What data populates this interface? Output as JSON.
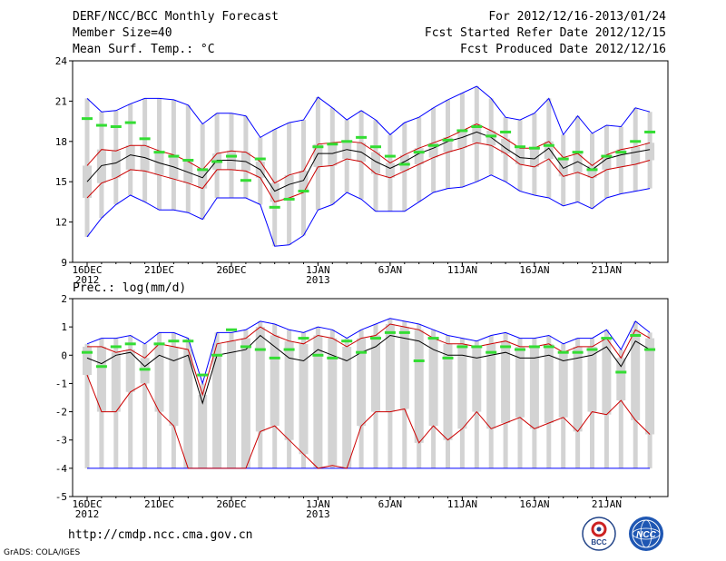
{
  "header": {
    "title": "DERF/NCC/BCC Monthly Forecast",
    "member_size": "Member Size=40",
    "variable": "Mean Surf. Temp.: °C",
    "period": "For 2012/12/16-2013/01/24",
    "refer_date": "Fcst Started Refer Date 2012/12/15",
    "produced_date": "Fcst Produced Date 2012/12/16"
  },
  "footer": {
    "url": "http://cmdp.ncc.cma.gov.cn",
    "credit": "GrADS: COLA/IGES",
    "logo_left_text": "BCC",
    "logo_right_text": "NCC"
  },
  "colors": {
    "max_min_line": "#0000ff",
    "percentile_line": "#cc0000",
    "mean_line": "#000000",
    "observed_mark": "#33dd33",
    "box": "#d3d3d3"
  },
  "chart_data": [
    {
      "type": "line",
      "title": "Mean Surf. Temp.: °C",
      "ylabel": "",
      "ylim": [
        9,
        24
      ],
      "yticks": [
        9,
        12,
        15,
        18,
        21,
        24
      ],
      "xticks": [
        {
          "day": 0,
          "label": "16DEC",
          "sublabel": "2012"
        },
        {
          "day": 5,
          "label": "21DEC",
          "sublabel": ""
        },
        {
          "day": 10,
          "label": "26DEC",
          "sublabel": ""
        },
        {
          "day": 16,
          "label": "1JAN",
          "sublabel": "2013"
        },
        {
          "day": 21,
          "label": "6JAN",
          "sublabel": ""
        },
        {
          "day": 26,
          "label": "11JAN",
          "sublabel": ""
        },
        {
          "day": 31,
          "label": "16JAN",
          "sublabel": ""
        },
        {
          "day": 36,
          "label": "21JAN",
          "sublabel": ""
        }
      ],
      "days": 40,
      "series": [
        {
          "name": "max",
          "values": [
            10.9,
            12.3,
            13.3,
            14.0,
            13.5,
            12.9,
            12.9,
            12.7,
            12.2,
            13.8,
            13.8,
            13.8,
            13.3,
            10.2,
            10.3,
            11.0,
            12.9,
            13.3,
            14.2,
            13.7,
            12.8,
            12.8,
            12.8,
            13.5,
            14.2,
            14.5,
            14.6,
            15.0,
            15.5,
            15.0,
            14.3,
            14.0,
            13.8,
            13.2,
            13.5,
            13.0,
            13.8,
            14.1,
            14.3,
            14.5
          ]
        },
        {
          "name": "min",
          "values": [
            21.2,
            20.2,
            20.3,
            20.8,
            21.2,
            21.2,
            21.1,
            20.7,
            19.3,
            20.1,
            20.1,
            19.9,
            18.3,
            18.9,
            19.4,
            19.6,
            21.3,
            20.5,
            19.6,
            20.3,
            19.6,
            18.5,
            19.4,
            19.8,
            20.5,
            21.1,
            21.6,
            22.1,
            21.2,
            19.8,
            19.6,
            20.1,
            21.2,
            18.5,
            19.9,
            18.6,
            19.2,
            19.1,
            20.5,
            20.2
          ]
        },
        {
          "name": "p25",
          "values": [
            13.8,
            14.9,
            15.3,
            15.9,
            15.8,
            15.5,
            15.2,
            14.9,
            14.5,
            15.9,
            15.9,
            15.8,
            15.3,
            13.5,
            13.8,
            14.2,
            16.1,
            16.2,
            16.7,
            16.5,
            15.6,
            15.3,
            15.8,
            16.3,
            16.8,
            17.2,
            17.5,
            17.9,
            17.7,
            17.1,
            16.3,
            16.1,
            16.7,
            15.4,
            15.7,
            15.3,
            15.9,
            16.1,
            16.3,
            16.6
          ]
        },
        {
          "name": "p75",
          "values": [
            16.2,
            17.4,
            17.3,
            17.7,
            17.7,
            17.3,
            17.0,
            16.5,
            15.9,
            17.1,
            17.3,
            17.2,
            16.5,
            14.9,
            15.5,
            15.8,
            17.8,
            17.9,
            18.0,
            17.9,
            17.2,
            16.4,
            17.0,
            17.5,
            17.9,
            18.3,
            18.8,
            19.3,
            18.8,
            18.2,
            17.5,
            17.5,
            18.0,
            16.8,
            17.1,
            16.2,
            17.0,
            17.4,
            17.6,
            17.9
          ]
        },
        {
          "name": "mean",
          "values": [
            15.0,
            16.2,
            16.4,
            17.0,
            16.8,
            16.4,
            16.1,
            15.7,
            15.3,
            16.6,
            16.6,
            16.5,
            15.9,
            14.3,
            14.8,
            15.1,
            17.1,
            17.1,
            17.4,
            17.2,
            16.5,
            16.0,
            16.5,
            17.1,
            17.5,
            18.0,
            18.3,
            18.7,
            18.3,
            17.5,
            16.8,
            16.7,
            17.5,
            16.0,
            16.5,
            15.9,
            16.7,
            17.0,
            17.2,
            17.4
          ]
        },
        {
          "name": "observed",
          "values": [
            19.7,
            19.2,
            19.1,
            19.4,
            18.2,
            17.2,
            16.9,
            16.6,
            15.9,
            16.5,
            16.9,
            15.1,
            16.7,
            13.1,
            13.7,
            14.3,
            17.6,
            17.8,
            18.0,
            18.3,
            17.6,
            16.9,
            16.3,
            17.2,
            17.7,
            18.1,
            18.8,
            19.1,
            18.4,
            18.7,
            17.6,
            17.5,
            17.7,
            16.7,
            17.2,
            15.9,
            16.9,
            17.2,
            18.0,
            18.7
          ]
        }
      ]
    },
    {
      "type": "line",
      "title": "Prec.: log(mm/d)",
      "ylabel": "",
      "ylim": [
        -5,
        2
      ],
      "yticks": [
        -5,
        -4,
        -3,
        -2,
        -1,
        0,
        1,
        2
      ],
      "xticks": [
        {
          "day": 0,
          "label": "16DEC",
          "sublabel": "2012"
        },
        {
          "day": 5,
          "label": "21DEC",
          "sublabel": ""
        },
        {
          "day": 10,
          "label": "26DEC",
          "sublabel": ""
        },
        {
          "day": 16,
          "label": "1JAN",
          "sublabel": "2013"
        },
        {
          "day": 21,
          "label": "6JAN",
          "sublabel": ""
        },
        {
          "day": 26,
          "label": "11JAN",
          "sublabel": ""
        },
        {
          "day": 31,
          "label": "16JAN",
          "sublabel": ""
        },
        {
          "day": 36,
          "label": "21JAN",
          "sublabel": ""
        }
      ],
      "days": 40,
      "series": [
        {
          "name": "max",
          "values": [
            0.4,
            0.6,
            0.6,
            0.7,
            0.4,
            0.8,
            0.8,
            0.6,
            -1.0,
            0.8,
            0.8,
            0.9,
            1.2,
            1.1,
            0.9,
            0.8,
            1.0,
            0.9,
            0.6,
            0.9,
            1.1,
            1.3,
            1.2,
            1.1,
            0.9,
            0.7,
            0.6,
            0.5,
            0.7,
            0.8,
            0.6,
            0.6,
            0.7,
            0.4,
            0.6,
            0.6,
            0.9,
            0.2,
            1.2,
            0.8
          ]
        },
        {
          "name": "min",
          "values": [
            -4,
            -4,
            -4,
            -4,
            -4,
            -4,
            -4,
            -4,
            -4,
            -4,
            -4,
            -4,
            -4,
            -4,
            -4,
            -4,
            -4,
            -4,
            -4,
            -4,
            -4,
            -4,
            -4,
            -4,
            -4,
            -4,
            -4,
            -4,
            -4,
            -4,
            -4,
            -4,
            -4,
            -4,
            -4,
            -4,
            -4,
            -4,
            -4,
            -4
          ]
        },
        {
          "name": "p25",
          "values": [
            -0.7,
            -2.0,
            -2.0,
            -1.3,
            -1.0,
            -2.0,
            -2.5,
            -4.0,
            -4.0,
            -4.0,
            -4.0,
            -4.0,
            -2.7,
            -2.5,
            -3.0,
            -3.5,
            -4.0,
            -3.9,
            -4.0,
            -2.5,
            -2.0,
            -2.0,
            -1.9,
            -3.1,
            -2.5,
            -3.0,
            -2.6,
            -2.0,
            -2.6,
            -2.4,
            -2.2,
            -2.6,
            -2.4,
            -2.2,
            -2.7,
            -2.0,
            -2.1,
            -1.6,
            -2.3,
            -2.8
          ]
        },
        {
          "name": "p75",
          "values": [
            0.3,
            0.3,
            0.1,
            0.2,
            -0.1,
            0.4,
            0.3,
            0.2,
            -1.4,
            0.4,
            0.5,
            0.6,
            1.0,
            0.7,
            0.5,
            0.4,
            0.7,
            0.6,
            0.3,
            0.6,
            0.7,
            1.1,
            1.0,
            0.9,
            0.6,
            0.4,
            0.4,
            0.3,
            0.4,
            0.5,
            0.3,
            0.3,
            0.4,
            0.1,
            0.3,
            0.3,
            0.6,
            -0.1,
            0.9,
            0.6
          ]
        },
        {
          "name": "mean",
          "values": [
            -0.1,
            -0.3,
            0.0,
            0.1,
            -0.4,
            0.0,
            -0.2,
            0.0,
            -1.7,
            0.0,
            0.1,
            0.2,
            0.7,
            0.3,
            -0.1,
            -0.2,
            0.2,
            0.0,
            -0.2,
            0.1,
            0.3,
            0.7,
            0.6,
            0.5,
            0.2,
            0.0,
            0.0,
            -0.1,
            0.0,
            0.1,
            -0.1,
            -0.1,
            0.0,
            -0.2,
            -0.1,
            0.0,
            0.3,
            -0.4,
            0.5,
            0.2
          ]
        },
        {
          "name": "observed",
          "values": [
            0.1,
            -0.4,
            0.3,
            0.4,
            -0.5,
            0.4,
            0.5,
            0.5,
            -0.7,
            0.0,
            0.9,
            0.3,
            0.2,
            -0.1,
            0.2,
            0.6,
            0.0,
            -0.1,
            0.5,
            0.1,
            0.6,
            0.8,
            0.8,
            -0.2,
            0.6,
            -0.1,
            0.3,
            0.3,
            0.1,
            0.3,
            0.2,
            0.3,
            0.3,
            0.1,
            0.1,
            0.2,
            0.6,
            -0.6,
            0.7,
            0.2
          ]
        }
      ]
    }
  ]
}
